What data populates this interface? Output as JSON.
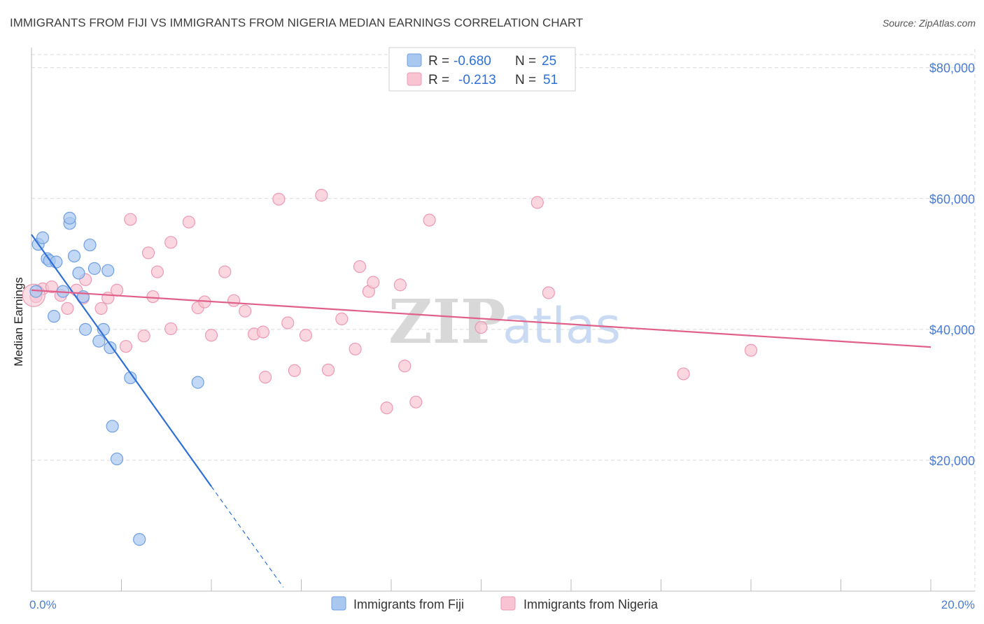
{
  "chart_data": {
    "type": "scatter",
    "title": "IMMIGRANTS FROM FIJI VS IMMIGRANTS FROM NIGERIA MEDIAN EARNINGS CORRELATION CHART",
    "source": "Source: ZipAtlas.com",
    "xlabel": "",
    "ylabel": "Median Earnings",
    "xlim": [
      0,
      20
    ],
    "ylim": [
      0,
      82000
    ],
    "x_tick_labels": [
      "0.0%",
      "20.0%"
    ],
    "y_ticks": [
      20000,
      40000,
      60000,
      80000
    ],
    "y_tick_labels": [
      "$20,000",
      "$40,000",
      "$60,000",
      "$80,000"
    ],
    "watermark": [
      "ZIP",
      "atlas"
    ],
    "colors": {
      "fiji_fill": "#a9c8f0",
      "fiji_stroke": "#6f9fe0",
      "fiji_line": "#2f6fd6",
      "nigeria_fill": "#f8c4d4",
      "nigeria_stroke": "#eb9ab3",
      "nigeria_line": "#e0608a"
    },
    "legend": {
      "rows": [
        {
          "r_label": "R =",
          "r_value": "-0.680",
          "n_label": "N =",
          "n_value": "25"
        },
        {
          "r_label": "R =",
          "r_value": "-0.213",
          "n_label": "N =",
          "n_value": "51"
        }
      ]
    },
    "series": [
      {
        "name": "Immigrants from Fiji",
        "trend": {
          "x0": 0.0,
          "y0": 54500,
          "x1": 4.0,
          "y1": 16000,
          "dash_to_x": 5.6
        },
        "points": [
          [
            0.1,
            45800
          ],
          [
            0.15,
            53000
          ],
          [
            0.25,
            54000
          ],
          [
            0.35,
            50800
          ],
          [
            0.4,
            50500
          ],
          [
            0.55,
            50300
          ],
          [
            0.5,
            42000
          ],
          [
            0.7,
            45800
          ],
          [
            0.85,
            56200
          ],
          [
            0.85,
            57000
          ],
          [
            0.95,
            51200
          ],
          [
            1.05,
            48600
          ],
          [
            1.15,
            45000
          ],
          [
            1.2,
            40000
          ],
          [
            1.3,
            52900
          ],
          [
            1.4,
            49300
          ],
          [
            1.5,
            38200
          ],
          [
            1.6,
            40000
          ],
          [
            1.7,
            49000
          ],
          [
            1.75,
            37200
          ],
          [
            1.8,
            25200
          ],
          [
            2.2,
            32600
          ],
          [
            1.9,
            20200
          ],
          [
            3.7,
            31900
          ],
          [
            2.4,
            7900
          ]
        ]
      },
      {
        "name": "Immigrants from Nigeria",
        "trend": {
          "x0": 0.0,
          "y0": 46000,
          "x1": 20.0,
          "y1": 37300
        },
        "points": [
          [
            0.1,
            45000
          ],
          [
            0.25,
            46200
          ],
          [
            0.45,
            46500
          ],
          [
            0.65,
            45200
          ],
          [
            0.8,
            43200
          ],
          [
            1.0,
            46000
          ],
          [
            1.15,
            44800
          ],
          [
            1.2,
            47600
          ],
          [
            1.55,
            43200
          ],
          [
            1.7,
            44800
          ],
          [
            1.9,
            46000
          ],
          [
            2.1,
            37400
          ],
          [
            2.2,
            56800
          ],
          [
            2.5,
            39000
          ],
          [
            2.6,
            51700
          ],
          [
            2.7,
            45000
          ],
          [
            2.8,
            48800
          ],
          [
            3.1,
            40100
          ],
          [
            3.1,
            53300
          ],
          [
            3.5,
            56400
          ],
          [
            3.7,
            43300
          ],
          [
            3.85,
            44200
          ],
          [
            4.0,
            39100
          ],
          [
            4.3,
            48800
          ],
          [
            4.5,
            44400
          ],
          [
            4.75,
            42800
          ],
          [
            4.95,
            39300
          ],
          [
            5.15,
            39600
          ],
          [
            5.2,
            32700
          ],
          [
            5.5,
            59900
          ],
          [
            5.7,
            41000
          ],
          [
            5.85,
            33700
          ],
          [
            6.1,
            39100
          ],
          [
            6.45,
            60500
          ],
          [
            6.6,
            33800
          ],
          [
            6.9,
            41600
          ],
          [
            7.2,
            37000
          ],
          [
            7.3,
            49600
          ],
          [
            7.5,
            45800
          ],
          [
            7.6,
            47200
          ],
          [
            7.9,
            28000
          ],
          [
            8.2,
            46800
          ],
          [
            8.3,
            34400
          ],
          [
            8.55,
            28900
          ],
          [
            8.85,
            56700
          ],
          [
            10.0,
            40300
          ],
          [
            11.25,
            59400
          ],
          [
            11.5,
            45600
          ],
          [
            14.5,
            33200
          ],
          [
            16.0,
            36800
          ],
          [
            0.05,
            45200
          ]
        ]
      }
    ]
  }
}
